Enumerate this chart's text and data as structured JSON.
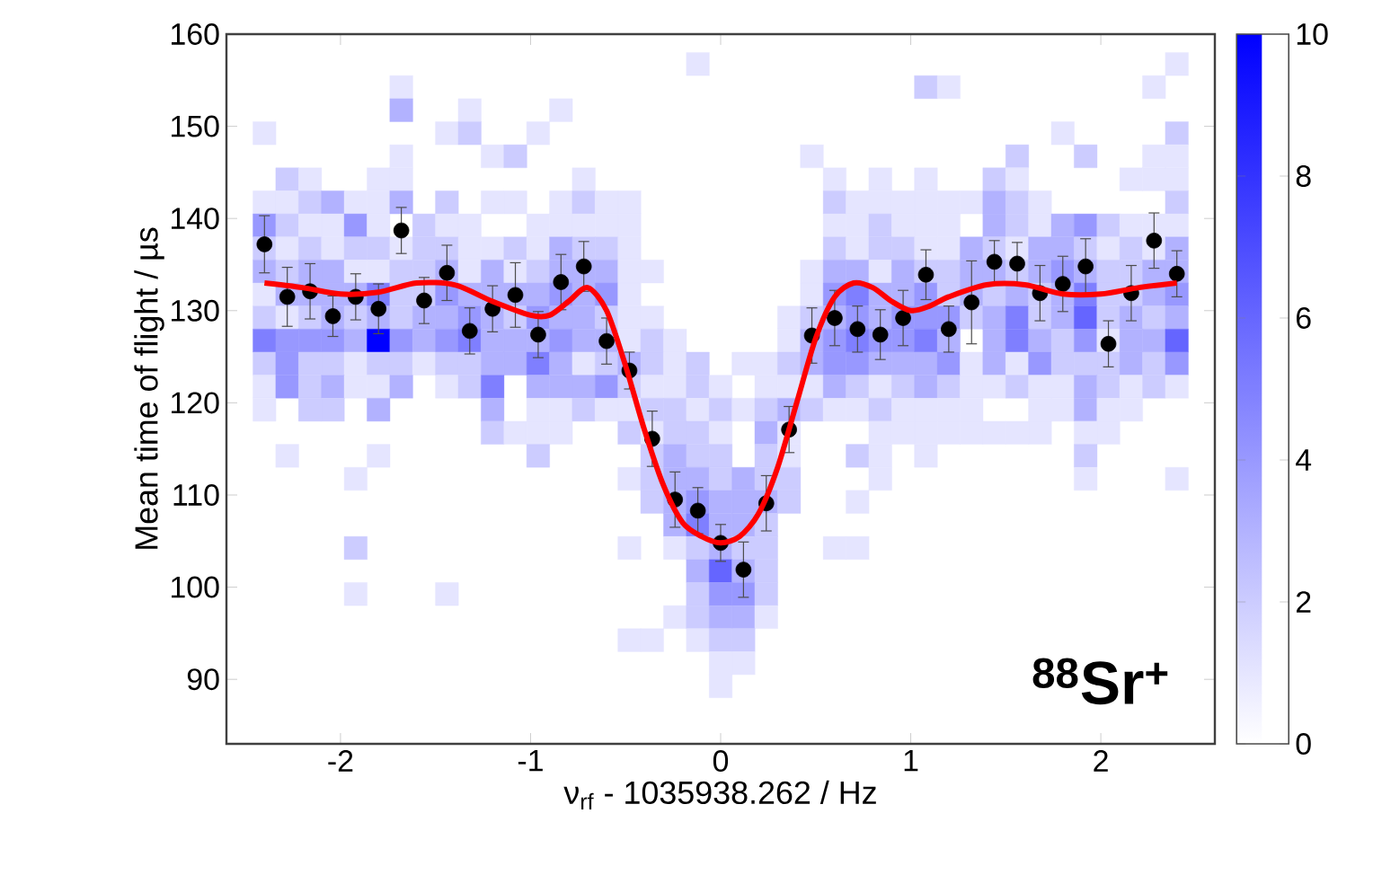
{
  "chart_data": {
    "type": "scatter",
    "xlabel": "ν$_{rf}$ - 1035938.262 / Hz",
    "ylabel": "Mean time of flight / µs",
    "xlim": [
      -2.6,
      2.6
    ],
    "ylim": [
      83,
      160
    ],
    "xticks": [
      -2,
      -1,
      0,
      1,
      2
    ],
    "yticks": [
      90,
      100,
      110,
      120,
      130,
      140,
      150,
      160
    ],
    "clim": [
      0,
      10
    ],
    "cticks": [
      0,
      2,
      4,
      6,
      8,
      10
    ],
    "annotations": [
      "**$^{88}$Sr$^{+}$**"
    ],
    "series": [
      {
        "type": "scatter",
        "marker": "square",
        "x": [
          -0.12,
          2.4,
          -1.68,
          1.08,
          1.2,
          2.28,
          -1.68,
          -1.32,
          -0.84,
          -2.4,
          -1.44,
          -1.32,
          -0.96,
          1.8,
          2.4,
          -1.68,
          -1.2,
          -1.08,
          0.48,
          1.56,
          1.92,
          2.28,
          2.4,
          -2.28,
          -2.16,
          -1.8,
          -1.68,
          -0.72,
          0.6,
          0.84,
          1.08,
          1.44,
          1.56,
          2.16,
          2.28,
          2.4,
          -2.4,
          -2.28,
          -2.16,
          -2.04,
          -1.92,
          -1.8,
          -1.68,
          -1.44,
          -1.2,
          -1.08,
          -0.84,
          -0.72,
          -0.6,
          -0.48,
          0.6,
          0.72,
          0.84,
          0.96,
          1.08,
          1.2,
          1.32,
          1.44,
          1.56,
          1.68,
          2.4,
          -2.4,
          -2.28,
          -2.16,
          -2.04,
          -1.92,
          -1.8,
          -1.56,
          -1.44,
          -1.32,
          -0.96,
          -0.84,
          -0.72,
          -0.6,
          -0.48,
          0.6,
          0.72,
          0.84,
          0.96,
          1.08,
          1.2,
          1.44,
          1.56,
          1.68,
          1.8,
          1.92,
          2.04,
          2.16,
          2.28,
          2.4,
          -2.4,
          -2.28,
          -2.16,
          -2.04,
          -1.92,
          -1.8,
          -1.68,
          -1.56,
          -1.44,
          -1.32,
          -1.2,
          -1.08,
          -0.96,
          -0.84,
          -0.72,
          -0.6,
          -0.48,
          0.6,
          0.72,
          0.84,
          0.96,
          1.08,
          1.2,
          1.32,
          1.44,
          1.56,
          1.68,
          1.8,
          1.92,
          2.04,
          2.16,
          2.28,
          2.4,
          -2.4,
          -2.28,
          -2.16,
          -2.04,
          -1.92,
          -1.8,
          -1.68,
          -1.56,
          -1.44,
          -1.32,
          -1.2,
          -1.08,
          -0.96,
          -0.84,
          -0.72,
          -0.6,
          -0.48,
          -0.36,
          0.48,
          0.6,
          0.72,
          0.84,
          0.96,
          1.08,
          1.2,
          1.32,
          1.44,
          1.56,
          1.68,
          1.8,
          1.92,
          2.04,
          2.16,
          2.28,
          2.4,
          -2.4,
          -2.28,
          -2.16,
          -2.04,
          -1.92,
          -1.8,
          -1.68,
          -1.56,
          -1.44,
          -1.32,
          -1.2,
          -1.08,
          -0.96,
          -0.84,
          -0.72,
          -0.6,
          -0.48,
          0.48,
          0.6,
          0.72,
          0.84,
          0.96,
          1.08,
          1.2,
          1.32,
          1.44,
          1.56,
          1.68,
          1.8,
          1.92,
          2.04,
          2.16,
          2.28,
          2.4,
          -2.4,
          -2.28,
          -2.16,
          -2.04,
          -1.92,
          -1.8,
          -1.68,
          -1.56,
          -1.44,
          -1.32,
          -1.2,
          -1.08,
          -0.96,
          -0.84,
          -0.72,
          -0.6,
          -0.48,
          -0.36,
          0.36,
          0.48,
          0.6,
          0.72,
          0.84,
          0.96,
          1.08,
          1.2,
          1.32,
          1.44,
          1.56,
          1.68,
          1.8,
          1.92,
          2.04,
          2.16,
          2.28,
          2.4,
          -2.4,
          -2.28,
          -2.16,
          -2.04,
          -1.92,
          -1.8,
          -1.68,
          -1.56,
          -1.44,
          -1.32,
          -1.2,
          -1.08,
          -0.96,
          -0.84,
          -0.72,
          -0.6,
          -0.48,
          -0.36,
          -0.24,
          0.36,
          0.48,
          0.6,
          0.72,
          0.84,
          0.96,
          1.08,
          1.2,
          1.44,
          1.56,
          1.68,
          1.8,
          1.92,
          2.04,
          2.16,
          2.28,
          2.4,
          -2.4,
          -2.28,
          -2.16,
          -2.04,
          -1.92,
          -1.8,
          -1.68,
          -1.56,
          -1.44,
          -1.32,
          -1.2,
          -1.08,
          -0.96,
          -0.84,
          -0.72,
          -0.6,
          -0.48,
          -0.36,
          -0.24,
          -0.12,
          0.12,
          0.24,
          0.36,
          0.48,
          0.6,
          0.72,
          0.84,
          0.96,
          1.08,
          1.2,
          1.32,
          1.44,
          1.56,
          1.68,
          1.8,
          1.92,
          2.04,
          2.16,
          2.28,
          2.4,
          -2.4,
          -2.28,
          -2.16,
          -2.04,
          -1.92,
          -1.8,
          -1.68,
          -1.44,
          -1.32,
          -1.2,
          -0.96,
          -0.84,
          -0.72,
          -0.6,
          -0.48,
          -0.36,
          -0.24,
          -0.12,
          0,
          0.24,
          0.36,
          0.48,
          0.6,
          0.72,
          0.84,
          0.96,
          1.08,
          1.2,
          1.32,
          1.44,
          1.56,
          1.68,
          1.8,
          1.92,
          2.04,
          2.16,
          2.28,
          2.4,
          -2.4,
          -2.16,
          -2.04,
          -1.8,
          -1.2,
          -0.96,
          -0.84,
          -0.72,
          -0.6,
          -0.48,
          -0.36,
          -0.24,
          -0.12,
          0,
          0.12,
          0.24,
          0.36,
          0.48,
          0.6,
          0.72,
          0.84,
          0.96,
          1.08,
          1.2,
          1.32,
          1.68,
          1.8,
          1.92,
          2.04,
          2.16,
          -1.2,
          -1.08,
          -0.96,
          -0.84,
          -0.48,
          -0.36,
          -0.24,
          -0.12,
          0,
          0.24,
          0.36,
          0.84,
          0.96,
          1.08,
          1.2,
          1.32,
          1.44,
          1.56,
          1.68,
          1.92,
          2.04,
          -2.28,
          -1.8,
          -0.96,
          -0.36,
          -0.24,
          -0.12,
          0,
          0.24,
          0.36,
          0.72,
          0.84,
          1.08,
          1.92,
          -1.92,
          -0.48,
          -0.36,
          -0.24,
          -0.12,
          0,
          0.12,
          0.24,
          0.36,
          0.84,
          1.92,
          2.4,
          -0.36,
          -0.24,
          -0.12,
          0,
          0.12,
          0.24,
          0.36,
          0.72,
          -0.24,
          -0.12,
          0,
          0.12,
          0.24,
          -1.92,
          -0.48,
          -0.24,
          -0.12,
          0,
          0.12,
          0.24,
          0.6,
          0.72,
          -0.12,
          0,
          0.12,
          0.24,
          -1.92,
          -1.44,
          -0.12,
          0,
          0.12,
          0.24,
          -0.24,
          -0.12,
          0,
          0.12,
          0.24,
          -0.48,
          -0.36,
          -0.12,
          0,
          0.12,
          0,
          0.12,
          0
        ],
        "values": [
          156.75,
          156.75,
          154.25,
          154.25,
          154.25,
          154.25,
          151.75,
          151.75,
          151.75,
          149.25,
          149.25,
          149.25,
          149.25,
          149.25,
          149.25,
          146.75,
          146.75,
          146.75,
          146.75,
          146.75,
          146.75,
          146.75,
          146.75,
          144.25,
          144.25,
          144.25,
          144.25,
          144.25,
          144.25,
          144.25,
          144.25,
          144.25,
          144.25,
          144.25,
          144.25,
          144.25,
          141.75,
          141.75,
          141.75,
          141.75,
          141.75,
          141.75,
          141.75,
          141.75,
          141.75,
          141.75,
          141.75,
          141.75,
          141.75,
          141.75,
          141.75,
          141.75,
          141.75,
          141.75,
          141.75,
          141.75,
          141.75,
          141.75,
          141.75,
          141.75,
          141.75,
          139.25,
          139.25,
          139.25,
          139.25,
          139.25,
          139.25,
          139.25,
          139.25,
          139.25,
          139.25,
          139.25,
          139.25,
          139.25,
          139.25,
          139.25,
          139.25,
          139.25,
          139.25,
          139.25,
          139.25,
          139.25,
          139.25,
          139.25,
          139.25,
          139.25,
          139.25,
          139.25,
          139.25,
          139.25,
          136.75,
          136.75,
          136.75,
          136.75,
          136.75,
          136.75,
          136.75,
          136.75,
          136.75,
          136.75,
          136.75,
          136.75,
          136.75,
          136.75,
          136.75,
          136.75,
          136.75,
          136.75,
          136.75,
          136.75,
          136.75,
          136.75,
          136.75,
          136.75,
          136.75,
          136.75,
          136.75,
          136.75,
          136.75,
          136.75,
          136.75,
          136.75,
          136.75,
          134.25,
          134.25,
          134.25,
          134.25,
          134.25,
          134.25,
          134.25,
          134.25,
          134.25,
          134.25,
          134.25,
          134.25,
          134.25,
          134.25,
          134.25,
          134.25,
          134.25,
          134.25,
          134.25,
          134.25,
          134.25,
          134.25,
          134.25,
          134.25,
          134.25,
          134.25,
          134.25,
          134.25,
          134.25,
          134.25,
          134.25,
          134.25,
          134.25,
          134.25,
          134.25,
          131.75,
          131.75,
          131.75,
          131.75,
          131.75,
          131.75,
          131.75,
          131.75,
          131.75,
          131.75,
          131.75,
          131.75,
          131.75,
          131.75,
          131.75,
          131.75,
          131.75,
          131.75,
          131.75,
          131.75,
          131.75,
          131.75,
          131.75,
          131.75,
          131.75,
          131.75,
          131.75,
          131.75,
          131.75,
          131.75,
          131.75,
          131.75,
          131.75,
          131.75,
          129.25,
          129.25,
          129.25,
          129.25,
          129.25,
          129.25,
          129.25,
          129.25,
          129.25,
          129.25,
          129.25,
          129.25,
          129.25,
          129.25,
          129.25,
          129.25,
          129.25,
          129.25,
          129.25,
          129.25,
          129.25,
          129.25,
          129.25,
          129.25,
          129.25,
          129.25,
          129.25,
          129.25,
          129.25,
          129.25,
          129.25,
          129.25,
          129.25,
          129.25,
          129.25,
          129.25,
          126.75,
          126.75,
          126.75,
          126.75,
          126.75,
          126.75,
          126.75,
          126.75,
          126.75,
          126.75,
          126.75,
          126.75,
          126.75,
          126.75,
          126.75,
          126.75,
          126.75,
          126.75,
          126.75,
          126.75,
          126.75,
          126.75,
          126.75,
          126.75,
          126.75,
          126.75,
          126.75,
          126.75,
          126.75,
          126.75,
          126.75,
          126.75,
          126.75,
          126.75,
          126.75,
          126.75,
          124.25,
          124.25,
          124.25,
          124.25,
          124.25,
          124.25,
          124.25,
          124.25,
          124.25,
          124.25,
          124.25,
          124.25,
          124.25,
          124.25,
          124.25,
          124.25,
          124.25,
          124.25,
          124.25,
          124.25,
          124.25,
          124.25,
          124.25,
          124.25,
          124.25,
          124.25,
          124.25,
          124.25,
          124.25,
          124.25,
          124.25,
          124.25,
          124.25,
          124.25,
          124.25,
          124.25,
          124.25,
          124.25,
          124.25,
          124.25,
          121.75,
          121.75,
          121.75,
          121.75,
          121.75,
          121.75,
          121.75,
          121.75,
          121.75,
          121.75,
          121.75,
          121.75,
          121.75,
          121.75,
          121.75,
          121.75,
          121.75,
          121.75,
          121.75,
          121.75,
          121.75,
          121.75,
          121.75,
          121.75,
          121.75,
          121.75,
          121.75,
          121.75,
          121.75,
          121.75,
          121.75,
          121.75,
          121.75,
          121.75,
          121.75,
          121.75,
          121.75,
          121.75,
          119.25,
          119.25,
          119.25,
          119.25,
          119.25,
          119.25,
          119.25,
          119.25,
          119.25,
          119.25,
          119.25,
          119.25,
          119.25,
          119.25,
          119.25,
          119.25,
          119.25,
          119.25,
          119.25,
          119.25,
          119.25,
          119.25,
          119.25,
          119.25,
          119.25,
          119.25,
          119.25,
          119.25,
          119.25,
          119.25,
          116.75,
          116.75,
          116.75,
          116.75,
          116.75,
          116.75,
          116.75,
          116.75,
          116.75,
          116.75,
          116.75,
          116.75,
          116.75,
          116.75,
          116.75,
          116.75,
          116.75,
          116.75,
          116.75,
          116.75,
          116.75,
          114.25,
          114.25,
          114.25,
          114.25,
          114.25,
          114.25,
          114.25,
          114.25,
          114.25,
          114.25,
          114.25,
          114.25,
          114.25,
          111.75,
          111.75,
          111.75,
          111.75,
          111.75,
          111.75,
          111.75,
          111.75,
          111.75,
          111.75,
          111.75,
          111.75,
          109.25,
          109.25,
          109.25,
          109.25,
          109.25,
          109.25,
          109.25,
          109.25,
          106.75,
          106.75,
          106.75,
          106.75,
          106.75,
          104.25,
          104.25,
          104.25,
          104.25,
          104.25,
          104.25,
          104.25,
          104.25,
          104.25,
          101.75,
          101.75,
          101.75,
          101.75,
          99.25,
          99.25,
          99.25,
          99.25,
          99.25,
          99.25,
          96.75,
          96.75,
          96.75,
          96.75,
          96.75,
          94.25,
          94.25,
          94.25,
          94.25,
          94.25,
          91.75,
          91.75,
          89.25
        ],
        "colors": [
          "#e6e6ff",
          "#e6e6ff",
          "#e6e6ff",
          "#ccccff",
          "#e6e6ff",
          "#e6e6ff",
          "#b2b2ff",
          "#e6e6ff",
          "#e6e6ff",
          "#e6e6ff",
          "#e6e6ff",
          "#ccccff",
          "#e6e6ff",
          "#e6e6ff",
          "#ccccff",
          "#e6e6ff",
          "#e6e6ff",
          "#ccccff",
          "#e6e6ff",
          "#ccccff",
          "#ccccff",
          "#e6e6ff",
          "#e6e6ff",
          "#ccccff",
          "#e6e6ff",
          "#e6e6ff",
          "#e6e6ff",
          "#e6e6ff",
          "#e6e6ff",
          "#e6e6ff",
          "#e6e6ff",
          "#ccccff",
          "#e6e6ff",
          "#e6e6ff",
          "#e6e6ff",
          "#e6e6ff",
          "#e6e6ff",
          "#e6e6ff",
          "#ccccff",
          "#b2b2ff",
          "#e6e6ff",
          "#e6e6ff",
          "#b2b2ff",
          "#ccccff",
          "#e6e6ff",
          "#e6e6ff",
          "#e6e6ff",
          "#ccccff",
          "#e6e6ff",
          "#e6e6ff",
          "#ccccff",
          "#e6e6ff",
          "#e6e6ff",
          "#e6e6ff",
          "#e6e6ff",
          "#e6e6ff",
          "#e6e6ff",
          "#b2b2ff",
          "#ccccff",
          "#e6e6ff",
          "#ccccff",
          "#9999ff",
          "#ccccff",
          "#e6e6ff",
          "#e6e6ff",
          "#9999ff",
          "#e6e6ff",
          "#ccccff",
          "#e6e6ff",
          "#e6e6ff",
          "#e6e6ff",
          "#e6e6ff",
          "#e6e6ff",
          "#e6e6ff",
          "#e6e6ff",
          "#e6e6ff",
          "#e6e6ff",
          "#ccccff",
          "#e6e6ff",
          "#e6e6ff",
          "#e6e6ff",
          "#b2b2ff",
          "#ccccff",
          "#e6e6ff",
          "#b2b2ff",
          "#9999ff",
          "#ccccff",
          "#e6e6ff",
          "#e6e6ff",
          "#e6e6ff",
          "#ccccff",
          "#e6e6ff",
          "#ccccff",
          "#e6e6ff",
          "#ccccff",
          "#ccccff",
          "#e6e6ff",
          "#ccccff",
          "#ccccff",
          "#e6e6ff",
          "#e6e6ff",
          "#ccccff",
          "#e6e6ff",
          "#b2b2ff",
          "#ccccff",
          "#ccccff",
          "#e6e6ff",
          "#ccccff",
          "#e6e6ff",
          "#ccccff",
          "#ccccff",
          "#e6e6ff",
          "#e6e6ff",
          "#b2b2ff",
          "#ccccff",
          "#e6e6ff",
          "#b2b2ff",
          "#b2b2ff",
          "#ccccff",
          "#e6e6ff",
          "#ccccff",
          "#e6e6ff",
          "#b2b2ff",
          "#b2b2ff",
          "#ccccff",
          "#b2b2ff",
          "#b2b2ff",
          "#e6e6ff",
          "#e6e6ff",
          "#ccccff",
          "#ccccff",
          "#b2b2ff",
          "#e6e6ff",
          "#b2b2ff",
          "#e6e6ff",
          "#ccccff",
          "#b2b2ff",
          "#b2b2ff",
          "#b2b2ff",
          "#e6e6ff",
          "#e6e6ff",
          "#e6e6ff",
          "#b2b2ff",
          "#b2b2ff",
          "#e6e6ff",
          "#b2b2ff",
          "#ccccff",
          "#ccccff",
          "#b2b2ff",
          "#b2b2ff",
          "#ccccff",
          "#b2b2ff",
          "#9999ff",
          "#b2b2ff",
          "#ccccff",
          "#ccccff",
          "#b2b2ff",
          "#b2b2ff",
          "#e6e6ff",
          "#b2b2ff",
          "#b2b2ff",
          "#b2b2ff",
          "#b2b2ff",
          "#8080ff",
          "#ccccff",
          "#ccccff",
          "#9999ff",
          "#b2b2ff",
          "#b2b2ff",
          "#b2b2ff",
          "#b2b2ff",
          "#9999ff",
          "#b2b2ff",
          "#9999ff",
          "#e6e6ff",
          "#e6e6ff",
          "#9999ff",
          "#8080ff",
          "#b2b2ff",
          "#b2b2ff",
          "#9999ff",
          "#ccccff",
          "#b2b2ff",
          "#ccccff",
          "#b2b2ff",
          "#ccccff",
          "#b2b2ff",
          "#8080ff",
          "#ccccff",
          "#ccccff",
          "#b2b2ff",
          "#9999ff",
          "#ccccff",
          "#e6e6ff",
          "#ccccff",
          "#b2b2ff",
          "#ccccff",
          "#b2b2ff",
          "#ccccff",
          "#b2b2ff",
          "#b2b2ff",
          "#9999ff",
          "#b2b2ff",
          "#ccccff",
          "#9999ff",
          "#b2b2ff",
          "#b2b2ff",
          "#ccccff",
          "#e6e6ff",
          "#e6e6ff",
          "#e6e6ff",
          "#ccccff",
          "#b2b2ff",
          "#9999ff",
          "#b2b2ff",
          "#9999ff",
          "#9999ff",
          "#9999ff",
          "#ccccff",
          "#b2b2ff",
          "#8080ff",
          "#ccccff",
          "#b2b2ff",
          "#6666ff",
          "#ccccff",
          "#b2b2ff",
          "#ccccff",
          "#b2b2ff",
          "#8080ff",
          "#9999ff",
          "#9999ff",
          "#9999ff",
          "#b2b2ff",
          "#0000ff",
          "#9999ff",
          "#b2b2ff",
          "#9999ff",
          "#8080ff",
          "#b2b2ff",
          "#b2b2ff",
          "#b2b2ff",
          "#9999ff",
          "#b2b2ff",
          "#b2b2ff",
          "#e6e6ff",
          "#ccccff",
          "#e6e6ff",
          "#e6e6ff",
          "#b2b2ff",
          "#9999ff",
          "#8080ff",
          "#9999ff",
          "#9999ff",
          "#8080ff",
          "#b2b2ff",
          "#b2b2ff",
          "#8080ff",
          "#b2b2ff",
          "#ccccff",
          "#9999ff",
          "#e6e6ff",
          "#b2b2ff",
          "#b2b2ff",
          "#6666ff",
          "#ccccff",
          "#9999ff",
          "#ccccff",
          "#ccccff",
          "#e6e6ff",
          "#ccccff",
          "#ccccff",
          "#e6e6ff",
          "#ccccff",
          "#ccccff",
          "#b2b2ff",
          "#b2b2ff",
          "#8080ff",
          "#b2b2ff",
          "#e6e6ff",
          "#ccccff",
          "#b2b2ff",
          "#ccccff",
          "#e6e6ff",
          "#ccccff",
          "#e6e6ff",
          "#e6e6ff",
          "#ccccff",
          "#b2b2ff",
          "#9999ff",
          "#9999ff",
          "#b2b2ff",
          "#b2b2ff",
          "#b2b2ff",
          "#9999ff",
          "#e6e6ff",
          "#b2b2ff",
          "#e6e6ff",
          "#9999ff",
          "#ccccff",
          "#ccccff",
          "#ccccff",
          "#b2b2ff",
          "#ccccff",
          "#9999ff",
          "#e6e6ff",
          "#9999ff",
          "#ccccff",
          "#b2b2ff",
          "#e6e6ff",
          "#e6e6ff",
          "#b2b2ff",
          "#e6e6ff",
          "#ccccff",
          "#8080ff",
          "#b2b2ff",
          "#b2b2ff",
          "#b2b2ff",
          "#9999ff",
          "#ccccff",
          "#e6e6ff",
          "#e6e6ff",
          "#ccccff",
          "#e6e6ff",
          "#e6e6ff",
          "#e6e6ff",
          "#e6e6ff",
          "#b2b2ff",
          "#ccccff",
          "#e6e6ff",
          "#ccccff",
          "#b2b2ff",
          "#ccccff",
          "#e6e6ff",
          "#e6e6ff",
          "#ccccff",
          "#e6e6ff",
          "#e6e6ff",
          "#b2b2ff",
          "#ccccff",
          "#e6e6ff",
          "#ccccff",
          "#e6e6ff",
          "#e6e6ff",
          "#ccccff",
          "#ccccff",
          "#b2b2ff",
          "#b2b2ff",
          "#e6e6ff",
          "#e6e6ff",
          "#ccccff",
          "#e6e6ff",
          "#e6e6ff",
          "#ccccff",
          "#ccccff",
          "#e6e6ff",
          "#ccccff",
          "#e6e6ff",
          "#ccccff",
          "#b2b2ff",
          "#ccccff",
          "#e6e6ff",
          "#e6e6ff",
          "#ccccff",
          "#e6e6ff",
          "#e6e6ff",
          "#e6e6ff",
          "#e6e6ff",
          "#e6e6ff",
          "#e6e6ff",
          "#b2b2ff",
          "#e6e6ff",
          "#e6e6ff",
          "#ccccff",
          "#e6e6ff",
          "#e6e6ff",
          "#e6e6ff",
          "#ccccff",
          "#e6e6ff",
          "#ccccff",
          "#ccccff",
          "#e6e6ff",
          "#b2b2ff",
          "#e6e6ff",
          "#e6e6ff",
          "#e6e6ff",
          "#e6e6ff",
          "#e6e6ff",
          "#e6e6ff",
          "#e6e6ff",
          "#e6e6ff",
          "#e6e6ff",
          "#e6e6ff",
          "#e6e6ff",
          "#e6e6ff",
          "#e6e6ff",
          "#ccccff",
          "#ccccff",
          "#b2b2ff",
          "#ccccff",
          "#ccccff",
          "#ccccff",
          "#e6e6ff",
          "#ccccff",
          "#e6e6ff",
          "#e6e6ff",
          "#ccccff",
          "#e6e6ff",
          "#e6e6ff",
          "#ccccff",
          "#b2b2ff",
          "#b2b2ff",
          "#ccccff",
          "#b2b2ff",
          "#ccccff",
          "#ccccff",
          "#e6e6ff",
          "#e6e6ff",
          "#e6e6ff",
          "#ccccff",
          "#b2b2ff",
          "#9999ff",
          "#b2b2ff",
          "#b2b2ff",
          "#b2b2ff",
          "#ccccff",
          "#e6e6ff",
          "#b2b2ff",
          "#8080ff",
          "#b2b2ff",
          "#b2b2ff",
          "#ccccff",
          "#ccccff",
          "#e6e6ff",
          "#e6e6ff",
          "#ccccff",
          "#b2b2ff",
          "#ccccff",
          "#ccccff",
          "#e6e6ff",
          "#e6e6ff",
          "#b2b2ff",
          "#6666ff",
          "#b2b2ff",
          "#ccccff",
          "#e6e6ff",
          "#e6e6ff",
          "#ccccff",
          "#9999ff",
          "#9999ff",
          "#ccccff",
          "#e6e6ff",
          "#ccccff",
          "#b2b2ff",
          "#b2b2ff",
          "#e6e6ff",
          "#e6e6ff",
          "#e6e6ff",
          "#e6e6ff",
          "#ccccff",
          "#ccccff",
          "#e6e6ff",
          "#e6e6ff",
          "#e6e6ff"
        ],
        "cvalues": [
          1,
          1,
          1,
          2,
          1,
          1,
          3,
          1,
          1,
          1,
          1,
          2,
          1,
          1,
          2,
          1,
          1,
          2,
          1,
          2,
          2,
          1,
          1,
          2,
          1,
          1,
          1,
          1,
          1,
          1,
          1,
          2,
          1,
          1,
          1,
          1,
          1,
          1,
          2,
          3,
          1,
          1,
          3,
          2,
          1,
          1,
          1,
          2,
          1,
          1,
          2,
          1,
          1,
          1,
          1,
          1,
          1,
          3,
          2,
          1,
          2,
          4,
          2,
          1,
          1,
          4,
          1,
          2,
          1,
          1,
          1,
          1,
          1,
          1,
          1,
          1,
          1,
          2,
          1,
          1,
          1,
          3,
          2,
          1,
          3,
          4,
          2,
          1,
          1,
          1,
          2,
          1,
          2,
          1,
          2,
          2,
          1,
          2,
          2,
          1,
          1,
          2,
          1,
          3,
          2,
          2,
          1,
          2,
          1,
          2,
          2,
          1,
          1,
          3,
          2,
          1,
          3,
          3,
          2,
          1,
          2,
          1,
          3,
          3,
          2,
          3,
          3,
          1,
          1,
          2,
          2,
          3,
          1,
          3,
          1,
          2,
          3,
          3,
          3,
          1,
          1,
          1,
          3,
          3,
          1,
          3,
          2,
          2,
          3,
          3,
          2,
          3,
          4,
          3,
          2,
          2,
          3,
          3,
          1,
          3,
          3,
          3,
          3,
          5,
          2,
          2,
          4,
          3,
          3,
          3,
          3,
          4,
          3,
          4,
          1,
          1,
          4,
          5,
          3,
          3,
          4,
          2,
          3,
          2,
          3,
          2,
          3,
          5,
          2,
          2,
          3,
          4,
          2,
          1,
          2,
          3,
          2,
          3,
          2,
          3,
          3,
          4,
          3,
          2,
          4,
          3,
          3,
          2,
          1,
          1,
          1,
          2,
          3,
          4,
          3,
          4,
          4,
          4,
          2,
          3,
          5,
          2,
          3,
          6,
          2,
          3,
          2,
          3,
          5,
          4,
          4,
          4,
          3,
          10,
          4,
          3,
          4,
          5,
          3,
          3,
          3,
          4,
          3,
          3,
          1,
          2,
          1,
          1,
          3,
          4,
          5,
          4,
          4,
          5,
          3,
          3,
          5,
          3,
          2,
          4,
          1,
          3,
          3,
          6,
          2,
          4,
          2,
          2,
          1,
          2,
          2,
          1,
          2,
          2,
          3,
          3,
          5,
          3,
          1,
          2,
          3,
          2,
          1,
          2,
          1,
          1,
          2,
          3,
          4,
          4,
          3,
          3,
          3,
          4,
          1,
          3,
          1,
          4,
          2,
          2,
          2,
          3,
          2,
          4,
          1,
          4,
          2,
          3,
          1,
          1,
          3,
          1,
          2,
          5,
          3,
          3,
          3,
          4,
          2,
          1,
          1,
          2,
          1,
          1,
          1,
          1,
          3,
          2,
          1,
          2,
          3,
          2,
          1,
          1,
          2,
          1,
          1,
          3,
          2,
          1,
          2,
          1,
          1,
          2,
          2,
          3,
          3,
          1,
          1,
          2,
          1,
          1,
          2,
          2,
          1,
          2,
          1,
          2,
          3,
          2,
          1,
          1,
          2,
          1,
          1,
          1,
          1,
          1,
          1,
          3,
          1,
          1,
          2,
          1,
          1,
          1,
          2,
          1,
          2,
          2,
          1,
          3,
          1,
          1,
          1,
          1,
          1,
          1,
          1,
          1,
          1,
          1,
          1,
          1,
          1,
          2,
          2,
          3,
          2,
          2,
          2,
          1,
          2,
          1,
          1,
          2,
          1,
          1,
          2,
          3,
          3,
          2,
          3,
          2,
          2,
          1,
          1,
          1,
          2,
          3,
          4,
          3,
          3,
          3,
          2,
          1,
          3,
          5,
          3,
          3,
          2,
          2,
          1,
          1,
          2,
          3,
          2,
          2,
          1,
          1,
          3,
          6,
          3,
          2,
          1,
          1,
          2,
          4,
          4,
          2,
          1,
          2,
          3,
          3,
          1,
          1,
          1,
          1,
          2,
          2,
          1,
          1,
          1
        ]
      },
      {
        "type": "scatter",
        "color": "#000000",
        "marker": "circle",
        "x": [
          -2.4,
          -2.28,
          -2.16,
          -2.04,
          -1.92,
          -1.8,
          -1.68,
          -1.56,
          -1.44,
          -1.32,
          -1.2,
          -1.08,
          -0.96,
          -0.84,
          -0.72,
          -0.6,
          -0.48,
          -0.36,
          -0.24,
          -0.12,
          0,
          0.12,
          0.24,
          0.36,
          0.48,
          0.6,
          0.72,
          0.84,
          0.96,
          1.08,
          1.2,
          1.32,
          1.44,
          1.56,
          1.68,
          1.8,
          1.92,
          2.04,
          2.16,
          2.28,
          2.4
        ],
        "values": [
          137.2,
          131.5,
          132.1,
          129.4,
          131.5,
          130.2,
          138.7,
          131.1,
          134.1,
          127.8,
          130.2,
          131.7,
          127.4,
          133.1,
          134.8,
          126.7,
          123.5,
          116.1,
          109.5,
          108.3,
          104.8,
          101.9,
          109.1,
          117.1,
          127.3,
          129.2,
          128,
          127.4,
          129.2,
          133.9,
          128,
          130.9,
          135.3,
          135.1,
          131.9,
          132.9,
          134.8,
          126.4,
          131.9,
          137.6,
          134
        ],
        "errors": [
          3.1,
          3.2,
          3,
          2.2,
          2.5,
          2.7,
          2.5,
          2.5,
          3,
          2.5,
          2.5,
          3.5,
          2.5,
          3,
          2.7,
          2.5,
          2,
          3,
          3,
          2.5,
          2,
          3,
          3,
          2.5,
          3,
          3,
          2.5,
          2.7,
          3,
          2.7,
          2.5,
          4.5,
          2.3,
          2.3,
          3,
          3,
          3,
          2.5,
          3,
          3,
          2.5
        ]
      },
      {
        "type": "line",
        "color": "#ff0000",
        "line_style": "solid",
        "marker": "none",
        "x": [
          -2.4,
          -2.2,
          -2.0,
          -1.8,
          -1.6,
          -1.4,
          -1.2,
          -1.0,
          -0.9,
          -0.8,
          -0.7,
          -0.6,
          -0.5,
          -0.4,
          -0.3,
          -0.2,
          -0.1,
          0,
          0.1,
          0.2,
          0.3,
          0.4,
          0.5,
          0.6,
          0.7,
          0.8,
          0.9,
          1.0,
          1.1,
          1.2,
          1.4,
          1.6,
          1.8,
          2.0,
          2.2,
          2.4
        ],
        "values": [
          133,
          132.5,
          131.8,
          132,
          133,
          132.8,
          131,
          129.5,
          129.5,
          131,
          132.5,
          130,
          124,
          117,
          111,
          107,
          105.5,
          104.8,
          105.5,
          108,
          113,
          120,
          127,
          131.5,
          133,
          132.5,
          131,
          130,
          130.5,
          131.5,
          132.8,
          132.8,
          131.8,
          131.8,
          132.5,
          133
        ]
      }
    ]
  }
}
